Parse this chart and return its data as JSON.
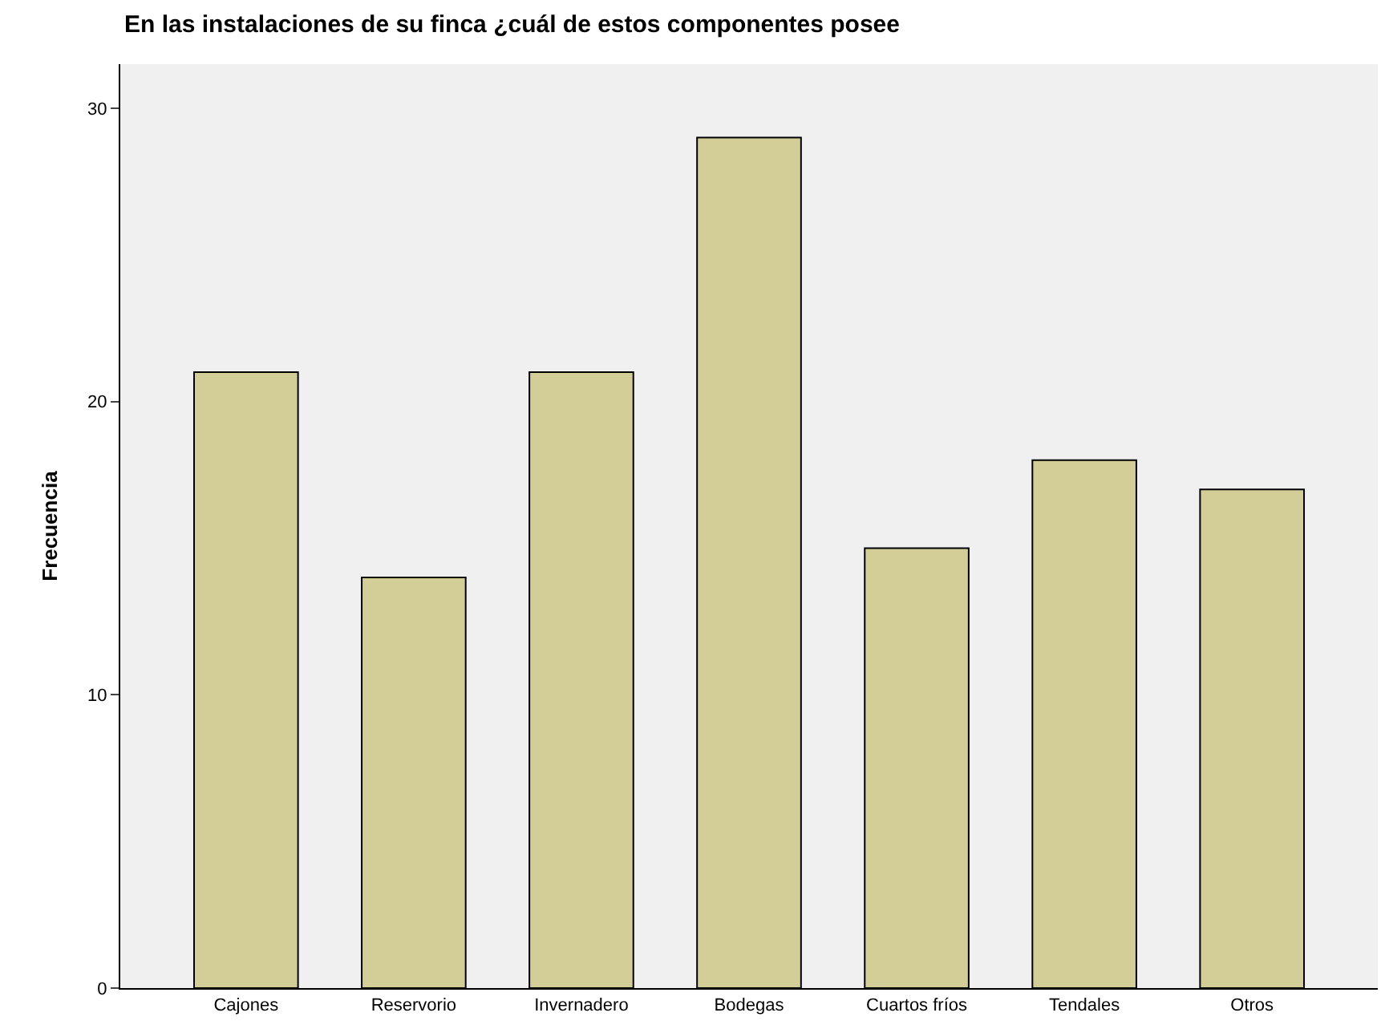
{
  "chart_data": {
    "type": "bar",
    "title": "En las instalaciones de su finca ¿cuál de estos componentes posee",
    "ylabel": "Frecuencia",
    "categories": [
      "Cajones",
      "Reservorio",
      "Invernadero",
      "Bodegas",
      "Cuartos fríos",
      "Tendales",
      "Otros"
    ],
    "values": [
      21,
      14,
      21,
      29,
      15,
      18,
      17
    ],
    "color": "#d3ce98",
    "ylim": [
      0,
      31.5
    ],
    "yticks": [
      0,
      10,
      20,
      30
    ],
    "grid": false,
    "legend": false
  }
}
